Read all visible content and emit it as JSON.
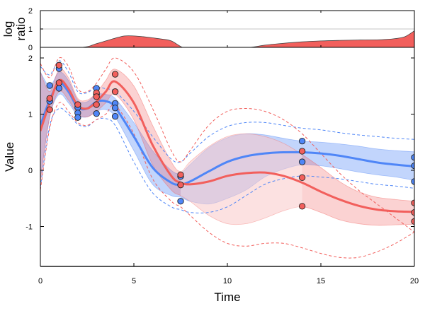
{
  "chart_data": [
    {
      "panel": "top",
      "type": "area",
      "ylabel_lines": [
        "log",
        "ratio"
      ],
      "xlim": [
        0,
        20
      ],
      "ylim": [
        0,
        2
      ],
      "yticks": [
        0,
        1,
        2
      ],
      "xticks": [
        0,
        5,
        10,
        15,
        20
      ],
      "reference_line": 1,
      "fill_color": "#f25f5c",
      "series": [
        {
          "name": "log ratio",
          "x": [
            0,
            2.2,
            3,
            3.5,
            4,
            4.5,
            5,
            5.5,
            6,
            6.5,
            7,
            7.6,
            8,
            10,
            11.2,
            12,
            13,
            14,
            15,
            16,
            17,
            18,
            18.5,
            19,
            19.5,
            20
          ],
          "y": [
            0,
            0,
            0.2,
            0.35,
            0.5,
            0.62,
            0.62,
            0.58,
            0.52,
            0.45,
            0.35,
            0,
            0,
            0,
            0,
            0.12,
            0.22,
            0.3,
            0.35,
            0.38,
            0.4,
            0.41,
            0.43,
            0.48,
            0.58,
            0.9
          ]
        }
      ]
    },
    {
      "panel": "main",
      "type": "line",
      "xlabel": "Time",
      "ylabel": "Value",
      "xlim": [
        0,
        20
      ],
      "ylim": [
        -1.7,
        2.1
      ],
      "xticks": [
        0,
        5,
        10,
        15,
        20
      ],
      "yticks": [
        -1,
        0,
        1,
        2
      ],
      "series": [
        {
          "name": "blue",
          "color": "#4f86f7",
          "mean": {
            "x": [
              0,
              0.5,
              1,
              1.5,
              2,
              2.5,
              3,
              3.5,
              4,
              5,
              6,
              7,
              7.5,
              8,
              9,
              10,
              11,
              12,
              13,
              14,
              15,
              16,
              17,
              18,
              19,
              20
            ],
            "y": [
              0.8,
              1.25,
              1.55,
              1.4,
              1.12,
              1.1,
              1.22,
              1.23,
              1.12,
              0.6,
              0.05,
              -0.22,
              -0.25,
              -0.2,
              -0.02,
              0.15,
              0.25,
              0.3,
              0.32,
              0.32,
              0.3,
              0.26,
              0.2,
              0.14,
              0.1,
              0.07
            ]
          },
          "band": {
            "upper": [
              1.75,
              1.5,
              1.75,
              1.6,
              1.25,
              1.22,
              1.35,
              1.35,
              1.28,
              0.85,
              0.35,
              0.0,
              -0.05,
              0.1,
              0.4,
              0.58,
              0.65,
              0.63,
              0.57,
              0.52,
              0.5,
              0.47,
              0.43,
              0.38,
              0.35,
              0.33
            ],
            "lower": [
              -0.15,
              0.95,
              1.35,
              1.2,
              0.98,
              0.95,
              1.05,
              1.08,
              0.95,
              0.35,
              -0.25,
              -0.45,
              -0.48,
              -0.55,
              -0.6,
              -0.5,
              -0.35,
              -0.12,
              0.02,
              0.1,
              0.08,
              0.03,
              -0.03,
              -0.08,
              -0.12,
              -0.18
            ]
          },
          "dashed_upper": [
            1.85,
            1.7,
            1.95,
            1.75,
            1.4,
            1.38,
            1.48,
            1.45,
            1.4,
            1.05,
            0.6,
            0.2,
            0.15,
            0.3,
            0.6,
            0.78,
            0.85,
            0.85,
            0.8,
            0.75,
            0.72,
            0.67,
            0.63,
            0.6,
            0.57,
            0.55
          ],
          "dashed_lower": [
            -0.3,
            0.8,
            1.1,
            1.0,
            0.82,
            0.78,
            0.9,
            0.92,
            0.8,
            0.15,
            -0.4,
            -0.65,
            -0.7,
            -0.75,
            -0.75,
            -0.65,
            -0.45,
            -0.25,
            -0.15,
            -0.1,
            -0.12,
            -0.15,
            -0.2,
            -0.25,
            -0.28,
            -0.32
          ],
          "points": {
            "x": [
              0.5,
              0.5,
              1,
              1,
              2,
              2,
              2,
              3,
              3,
              3,
              4,
              4,
              4,
              7.5,
              7.5,
              14,
              14,
              20,
              20,
              20
            ],
            "y": [
              1.51,
              1.23,
              1.81,
              1.46,
              1.12,
              1.02,
              0.94,
              1.46,
              1.35,
              1.01,
              1.19,
              1.11,
              0.96,
              -0.11,
              -0.55,
              0.52,
              0.15,
              0.23,
              0.08,
              -0.2
            ]
          }
        },
        {
          "name": "red",
          "color": "#f25f5c",
          "mean": {
            "x": [
              0,
              0.5,
              1,
              1.5,
              2,
              2.5,
              3,
              3.5,
              4,
              5,
              6,
              7,
              7.5,
              8,
              9,
              10,
              11,
              12,
              13,
              14,
              15,
              16,
              17,
              18,
              19,
              20
            ],
            "y": [
              0.7,
              1.2,
              1.6,
              1.45,
              1.15,
              1.1,
              1.22,
              1.4,
              1.58,
              1.2,
              0.45,
              -0.1,
              -0.22,
              -0.25,
              -0.2,
              -0.1,
              -0.05,
              -0.04,
              -0.1,
              -0.22,
              -0.38,
              -0.52,
              -0.63,
              -0.7,
              -0.73,
              -0.74
            ]
          },
          "band": {
            "upper": [
              1.75,
              1.4,
              1.8,
              1.65,
              1.28,
              1.25,
              1.38,
              1.6,
              1.8,
              1.5,
              0.8,
              0.15,
              -0.02,
              0.15,
              0.42,
              0.6,
              0.65,
              0.6,
              0.48,
              0.28,
              0.05,
              -0.2,
              -0.38,
              -0.48,
              -0.52,
              -0.55
            ],
            "lower": [
              -0.2,
              0.95,
              1.4,
              1.25,
              1.0,
              0.95,
              1.05,
              1.2,
              1.35,
              0.9,
              0.1,
              -0.35,
              -0.45,
              -0.55,
              -0.8,
              -0.95,
              -0.95,
              -0.85,
              -0.72,
              -0.65,
              -0.75,
              -0.88,
              -0.95,
              -0.98,
              -0.97,
              -0.96
            ],
            "fades_from_mean_at": 7.5
          },
          "dashed_upper": [
            1.9,
            1.65,
            2.0,
            1.85,
            1.45,
            1.4,
            1.55,
            1.8,
            2.0,
            1.75,
            1.1,
            0.35,
            0.15,
            0.35,
            0.8,
            1.05,
            1.1,
            1.05,
            0.9,
            0.65,
            0.3,
            -0.05,
            -0.35,
            -0.6,
            -0.85,
            -1.1
          ],
          "dashed_lower": [
            -0.35,
            0.75,
            1.2,
            1.05,
            0.85,
            0.8,
            0.9,
            1.0,
            1.15,
            0.65,
            -0.15,
            -0.55,
            -0.65,
            -0.8,
            -1.1,
            -1.3,
            -1.35,
            -1.3,
            -1.3,
            -1.38,
            -1.48,
            -1.55,
            -1.55,
            -1.45,
            -1.3,
            -1.1
          ],
          "points": {
            "x": [
              0.5,
              0.5,
              1,
              1,
              2,
              3,
              3,
              3,
              4,
              4,
              7.5,
              7.5,
              14,
              14,
              14,
              20,
              20,
              20
            ],
            "y": [
              1.28,
              1.08,
              1.87,
              1.56,
              1.17,
              1.38,
              1.31,
              1.17,
              1.71,
              1.4,
              -0.08,
              -0.26,
              0.34,
              -0.13,
              -0.64,
              -0.58,
              -0.75,
              -0.91
            ]
          }
        }
      ]
    }
  ]
}
